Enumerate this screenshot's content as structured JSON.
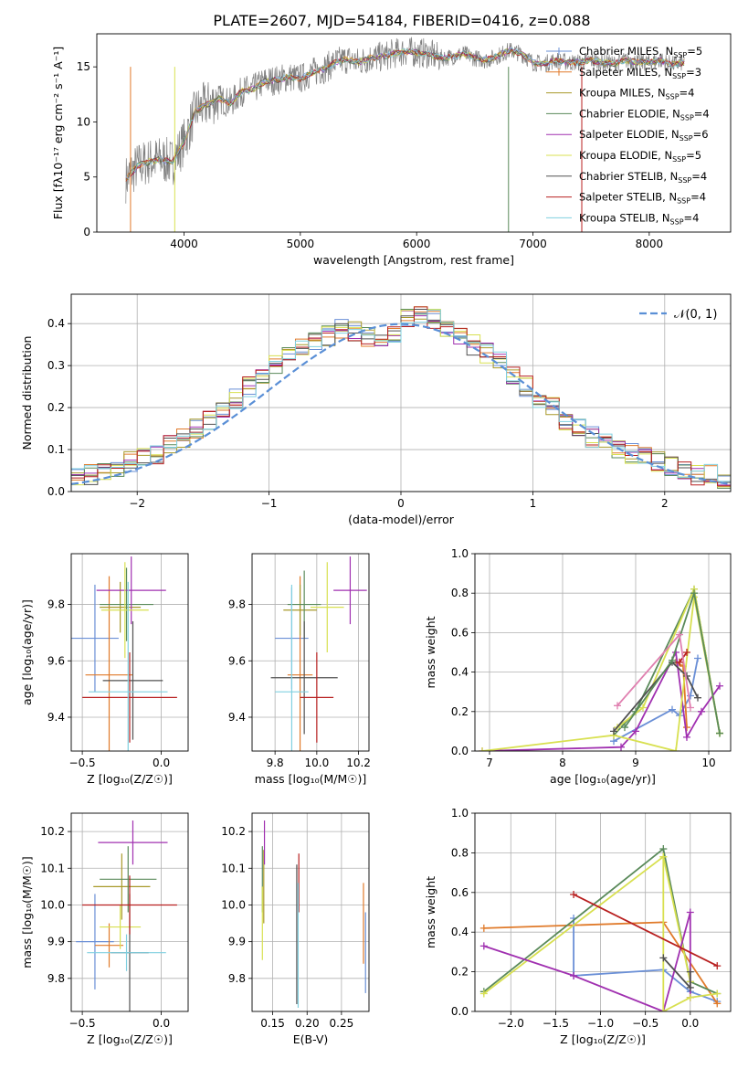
{
  "figure_title": "PLATE=2607, MJD=54184, FIBERID=0416, z=0.088",
  "series_colors": [
    "#6a8fd6",
    "#e07a2a",
    "#a89a2a",
    "#5a8a5a",
    "#a030b0",
    "#d8e050",
    "#505050",
    "#b82020",
    "#80d0e0"
  ],
  "chart_data": [
    {
      "id": "spectrum",
      "type": "line",
      "title": "PLATE=2607, MJD=54184, FIBERID=0416, z=0.088",
      "xlabel": "wavelength [Angstrom, rest frame]",
      "ylabel": "Flux [fλ10⁻¹⁷ erg cm⁻² s⁻¹ A⁻¹]",
      "xlim": [
        3250,
        8700
      ],
      "ylim": [
        0,
        18
      ],
      "xticks": [
        4000,
        5000,
        6000,
        7000,
        8000
      ],
      "yticks": [
        0,
        5,
        10,
        15
      ],
      "grid": false,
      "legend_position": "right",
      "observed": {
        "color": "#808080",
        "x": [
          3500,
          3600,
          3700,
          3800,
          3900,
          4000,
          4100,
          4200,
          4300,
          4400,
          4500,
          4600,
          4700,
          4800,
          4900,
          5000,
          5100,
          5200,
          5300,
          5400,
          5500,
          5600,
          5700,
          5800,
          5900,
          6000,
          6100,
          6200,
          6300,
          6400,
          6500,
          6600,
          6700,
          6800,
          6900,
          7000,
          7100,
          7200,
          7300,
          7400,
          7500,
          7600,
          7700,
          7800,
          7900,
          8000,
          8100,
          8200,
          8300
        ],
        "y": [
          4.8,
          6.0,
          6.4,
          6.6,
          6.3,
          8.2,
          11.0,
          11.6,
          12.1,
          11.7,
          12.8,
          13.0,
          13.7,
          13.8,
          14.1,
          13.9,
          14.5,
          14.8,
          15.4,
          15.7,
          15.4,
          15.8,
          15.9,
          16.2,
          16.4,
          16.3,
          16.2,
          15.8,
          15.9,
          16.2,
          15.8,
          15.6,
          16.0,
          16.5,
          16.2,
          15.4,
          15.3,
          15.6,
          15.4,
          15.4,
          15.6,
          15.4,
          15.3,
          15.6,
          15.4,
          15.4,
          15.6,
          15.2,
          15.4
        ]
      },
      "series": [
        {
          "name": "Chabrier MILES, N_SSP=5",
          "marker": "+"
        },
        {
          "name": "Salpeter MILES, N_SSP=3",
          "marker": "+"
        },
        {
          "name": "Kroupa MILES, N_SSP=4",
          "marker": ""
        },
        {
          "name": "Chabrier ELODIE, N_SSP=4",
          "marker": ""
        },
        {
          "name": "Salpeter ELODIE, N_SSP=6",
          "marker": ""
        },
        {
          "name": "Kroupa ELODIE, N_SSP=5",
          "marker": ""
        },
        {
          "name": "Chabrier STELIB, N_SSP=4",
          "marker": ""
        },
        {
          "name": "Salpeter STELIB, N_SSP=4",
          "marker": ""
        },
        {
          "name": "Kroupa STELIB, N_SSP=4",
          "marker": ""
        }
      ]
    },
    {
      "id": "residuals",
      "type": "histogram",
      "xlabel": "(data-model)/error",
      "ylabel": "Normed distribution",
      "xlim": [
        -2.5,
        2.5
      ],
      "ylim": [
        0,
        0.47
      ],
      "xticks": [
        -2,
        -1,
        0,
        1,
        2
      ],
      "yticks": [
        0.0,
        0.1,
        0.2,
        0.3,
        0.4
      ],
      "grid": true,
      "legend_position": "top-right",
      "reference_curve": {
        "name": "𝒩(0, 1)",
        "style": "dashed",
        "color": "#5a8fd6"
      },
      "bin_width": 0.1,
      "bins_from": -2.5,
      "histogram_base": [
        0.03,
        0.04,
        0.05,
        0.06,
        0.07,
        0.08,
        0.09,
        0.11,
        0.13,
        0.15,
        0.17,
        0.2,
        0.22,
        0.25,
        0.28,
        0.3,
        0.32,
        0.34,
        0.36,
        0.37,
        0.39,
        0.38,
        0.37,
        0.36,
        0.38,
        0.41,
        0.42,
        0.41,
        0.39,
        0.37,
        0.35,
        0.33,
        0.31,
        0.28,
        0.25,
        0.22,
        0.2,
        0.17,
        0.15,
        0.13,
        0.12,
        0.1,
        0.09,
        0.08,
        0.07,
        0.06,
        0.05,
        0.04,
        0.04,
        0.03
      ]
    },
    {
      "id": "age-vs-metallicity",
      "type": "errorbar",
      "xlabel": "Z [log₁₀(Z/Z☉)]",
      "ylabel": "age  [log₁₀(age/yr)]",
      "xlim": [
        -0.57,
        0.17
      ],
      "ylim": [
        9.28,
        9.98
      ],
      "xticks": [
        -0.5,
        0.0
      ],
      "yticks": [
        9.4,
        9.6,
        9.8
      ],
      "grid": true,
      "points": [
        {
          "x": -0.42,
          "xerr": 0.15,
          "y": 9.68,
          "yerr": 0.19
        },
        {
          "x": -0.33,
          "xerr": 0.15,
          "y": 9.55,
          "yerr": 0.35
        },
        {
          "x": -0.26,
          "xerr": 0.13,
          "y": 9.79,
          "yerr": 0.09
        },
        {
          "x": -0.22,
          "xerr": 0.17,
          "y": 9.8,
          "yerr": 0.13
        },
        {
          "x": -0.19,
          "xerr": 0.22,
          "y": 9.85,
          "yerr": 0.12
        },
        {
          "x": -0.23,
          "xerr": 0.15,
          "y": 9.78,
          "yerr": 0.17
        },
        {
          "x": -0.18,
          "xerr": 0.19,
          "y": 9.53,
          "yerr": 0.21
        },
        {
          "x": -0.2,
          "xerr": 0.3,
          "y": 9.47,
          "yerr": 0.16
        },
        {
          "x": -0.21,
          "xerr": 0.25,
          "y": 9.49,
          "yerr": 0.39
        }
      ]
    },
    {
      "id": "age-vs-mass",
      "type": "errorbar",
      "xlabel": "mass [log₁₀(M/M☉)]",
      "ylabel": "",
      "xlim": [
        9.69,
        10.25
      ],
      "ylim": [
        9.28,
        9.98
      ],
      "xticks": [
        9.8,
        10.0,
        10.2
      ],
      "yticks": [
        9.4,
        9.6,
        9.8
      ],
      "grid": true,
      "points": [
        {
          "x": 9.88,
          "xerr": 0.08,
          "y": 9.68,
          "yerr": 0.18
        },
        {
          "x": 9.92,
          "xerr": 0.06,
          "y": 9.55,
          "yerr": 0.35
        },
        {
          "x": 9.92,
          "xerr": 0.08,
          "y": 9.78,
          "yerr": 0.09
        },
        {
          "x": 9.94,
          "xerr": 0.08,
          "y": 9.8,
          "yerr": 0.12
        },
        {
          "x": 10.16,
          "xerr": 0.08,
          "y": 9.85,
          "yerr": 0.12
        },
        {
          "x": 10.05,
          "xerr": 0.08,
          "y": 9.79,
          "yerr": 0.16
        },
        {
          "x": 9.94,
          "xerr": 0.16,
          "y": 9.54,
          "yerr": 0.2
        },
        {
          "x": 10.0,
          "xerr": 0.08,
          "y": 9.47,
          "yerr": 0.16
        },
        {
          "x": 9.88,
          "xerr": 0.08,
          "y": 9.49,
          "yerr": 0.38
        }
      ]
    },
    {
      "id": "mass-weight-vs-age",
      "type": "line",
      "xlabel": "age  [log₁₀(age/yr)]",
      "ylabel": "mass weight",
      "xlim": [
        6.8,
        10.3
      ],
      "ylim": [
        0,
        1
      ],
      "xticks": [
        7,
        8,
        9,
        10
      ],
      "yticks": [
        0.0,
        0.2,
        0.4,
        0.6,
        0.8,
        1.0
      ],
      "grid": true,
      "series": [
        {
          "x": [
            8.7,
            9.5,
            9.6,
            9.75,
            9.85
          ],
          "y": [
            0.05,
            0.21,
            0.18,
            0.28,
            0.47
          ]
        },
        {
          "x": [
            9.55,
            9.65,
            9.7
          ],
          "y": [
            0.45,
            0.43,
            0.12
          ]
        },
        {
          "x": [
            8.7,
            9.0,
            9.8,
            10.15
          ],
          "y": [
            0.08,
            0.2,
            0.82,
            0.09
          ]
        },
        {
          "x": [
            8.75,
            9.1,
            9.8,
            10.15
          ],
          "y": [
            0.12,
            0.22,
            0.82,
            0.09
          ]
        },
        {
          "x": [
            6.9,
            8.8,
            9.0,
            9.55,
            9.7,
            9.9,
            10.15
          ],
          "y": [
            0.0,
            0.02,
            0.1,
            0.5,
            0.07,
            0.2,
            0.33
          ]
        },
        {
          "x": [
            6.9,
            8.7,
            9.55,
            9.8,
            10.15
          ],
          "y": [
            0.0,
            0.08,
            0.0,
            0.78,
            0.09
          ]
        },
        {
          "x": [
            8.7,
            9.5,
            9.7,
            9.85
          ],
          "y": [
            0.1,
            0.45,
            0.38,
            0.27
          ]
        },
        {
          "x": [
            9.6,
            9.7
          ],
          "y": [
            0.45,
            0.5
          ]
        },
        {
          "x": [
            8.85,
            9.5,
            9.8,
            10.15
          ],
          "y": [
            0.12,
            0.46,
            0.8,
            0.09
          ]
        },
        {
          "x": [
            8.75,
            9.6,
            9.75
          ],
          "y": [
            0.23,
            0.59,
            0.22
          ]
        }
      ]
    },
    {
      "id": "mass-vs-metallicity",
      "type": "errorbar",
      "xlabel": "Z [log₁₀(Z/Z☉)]",
      "ylabel": "mass [log₁₀(M/M☉)]",
      "xlim": [
        -0.57,
        0.17
      ],
      "ylim": [
        9.71,
        10.25
      ],
      "xticks": [
        -0.5,
        0.0
      ],
      "yticks": [
        9.8,
        9.9,
        10.0,
        10.1,
        10.2
      ],
      "grid": true,
      "points": [
        {
          "x": -0.42,
          "xerr": 0.12,
          "y": 9.9,
          "yerr": 0.13
        },
        {
          "x": -0.33,
          "xerr": 0.09,
          "y": 9.89,
          "yerr": 0.06
        },
        {
          "x": -0.25,
          "xerr": 0.18,
          "y": 10.05,
          "yerr": 0.09
        },
        {
          "x": -0.21,
          "xerr": 0.18,
          "y": 10.07,
          "yerr": 0.09
        },
        {
          "x": -0.18,
          "xerr": 0.22,
          "y": 10.17,
          "yerr": 0.06
        },
        {
          "x": -0.26,
          "xerr": 0.13,
          "y": 9.94,
          "yerr": 0.06
        },
        {
          "x": -0.2,
          "xerr": 0.12,
          "y": 9.87,
          "yerr": 0.16
        },
        {
          "x": -0.2,
          "xerr": 0.3,
          "y": 10.0,
          "yerr": 0.08
        },
        {
          "x": -0.22,
          "xerr": 0.25,
          "y": 9.87,
          "yerr": 0.05
        }
      ]
    },
    {
      "id": "mass-vs-extinction",
      "type": "errorbar",
      "xlabel": "E(B-V)",
      "ylabel": "",
      "xlim": [
        0.12,
        0.29
      ],
      "ylim": [
        9.71,
        10.25
      ],
      "xticks": [
        0.15,
        0.2,
        0.25
      ],
      "yticks": [
        9.8,
        9.9,
        10.0,
        10.1,
        10.2
      ],
      "grid": true,
      "points": [
        {
          "x": 0.285,
          "xerr": 0,
          "y": 9.87,
          "yerr": 0.11
        },
        {
          "x": 0.282,
          "xerr": 0,
          "y": 9.95,
          "yerr": 0.11
        },
        {
          "x": 0.137,
          "xerr": 0,
          "y": 10.05,
          "yerr": 0.1
        },
        {
          "x": 0.135,
          "xerr": 0,
          "y": 10.07,
          "yerr": 0.09
        },
        {
          "x": 0.138,
          "xerr": 0,
          "y": 10.17,
          "yerr": 0.06
        },
        {
          "x": 0.135,
          "xerr": 0,
          "y": 9.95,
          "yerr": 0.1
        },
        {
          "x": 0.185,
          "xerr": 0,
          "y": 9.92,
          "yerr": 0.19
        },
        {
          "x": 0.188,
          "xerr": 0,
          "y": 10.06,
          "yerr": 0.08
        },
        {
          "x": 0.187,
          "xerr": 0,
          "y": 9.89,
          "yerr": 0.17
        }
      ]
    },
    {
      "id": "mass-weight-vs-metallicity",
      "type": "line",
      "xlabel": "Z [log₁₀(Z/Z☉)]",
      "ylabel": "mass weight",
      "xlim": [
        -2.4,
        0.45
      ],
      "ylim": [
        0,
        1
      ],
      "xticks": [
        -2.0,
        -1.5,
        -1.0,
        -0.5,
        0.0
      ],
      "yticks": [
        0.0,
        0.2,
        0.4,
        0.6,
        0.8,
        1.0
      ],
      "grid": true,
      "series": [
        {
          "x": [
            -1.3,
            -1.3,
            -0.3,
            0.0,
            0.3
          ],
          "y": [
            0.47,
            0.18,
            0.21,
            0.1,
            0.05
          ]
        },
        {
          "x": [
            -2.3,
            -0.3,
            0.3
          ],
          "y": [
            0.42,
            0.45,
            0.04
          ]
        },
        {
          "x": [
            -2.3,
            -0.3,
            0.0,
            0.3
          ],
          "y": [
            0.1,
            0.82,
            0.15,
            0.09
          ]
        },
        {
          "x": [
            -2.3,
            -0.3,
            0.0
          ],
          "y": [
            0.09,
            0.78,
            0.15
          ]
        },
        {
          "x": [
            -2.3,
            -1.3,
            -0.3,
            0.0,
            0.0
          ],
          "y": [
            0.33,
            0.18,
            0.0,
            0.5,
            0.07
          ]
        },
        {
          "x": [
            -0.3,
            -0.3,
            0.0,
            0.3
          ],
          "y": [
            0.78,
            0.0,
            0.07,
            0.09
          ]
        },
        {
          "x": [
            -0.3,
            0.0,
            0.0
          ],
          "y": [
            0.27,
            0.12,
            0.2
          ]
        },
        {
          "x": [
            -1.3,
            0.3
          ],
          "y": [
            0.59,
            0.23
          ]
        }
      ]
    }
  ]
}
